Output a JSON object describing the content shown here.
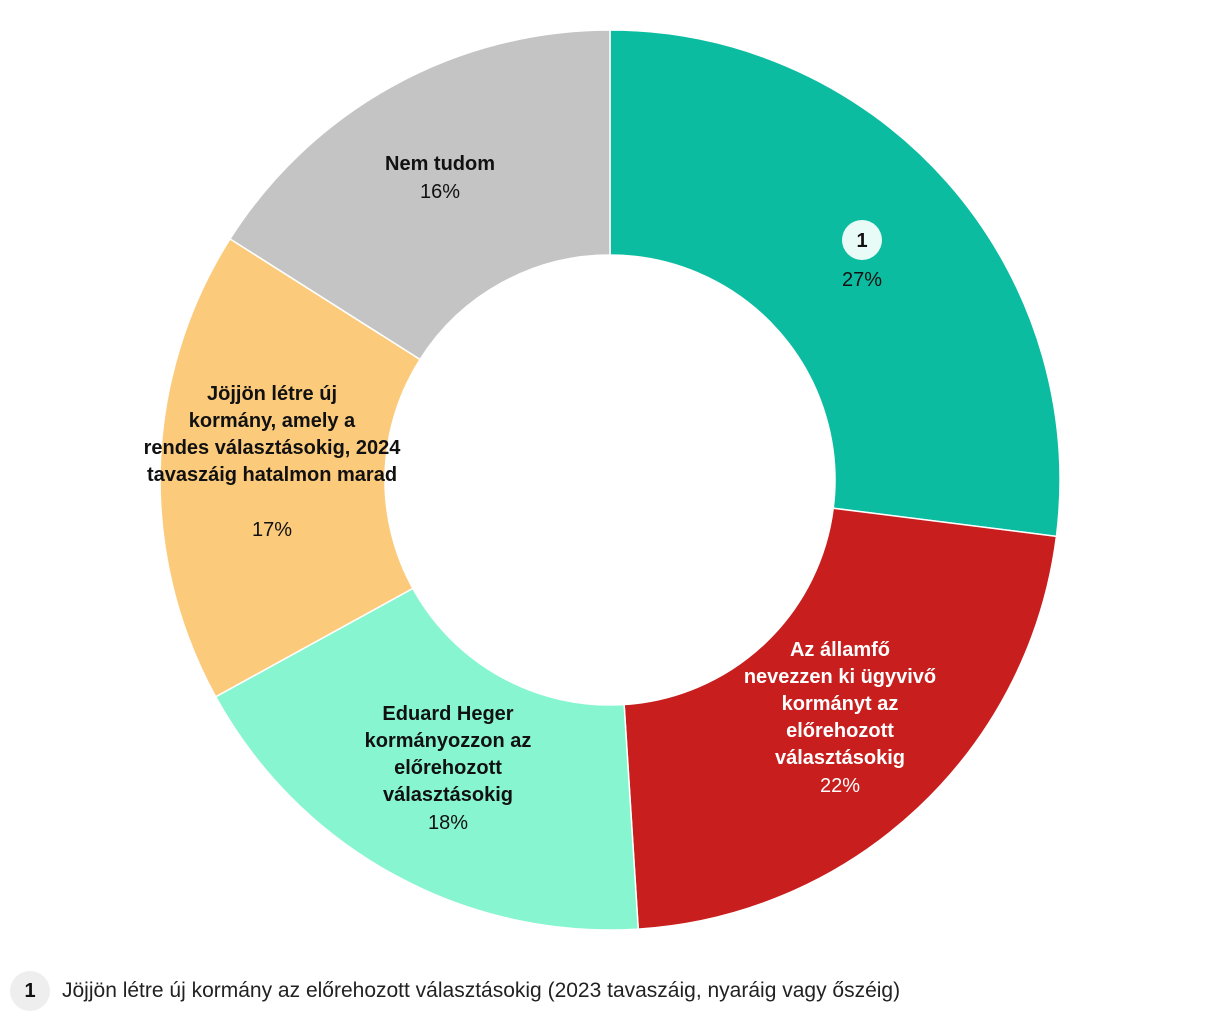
{
  "chart_data": {
    "type": "pie",
    "variant": "donut",
    "slices": [
      {
        "label": "1",
        "is_note_ref": true,
        "value": 27,
        "value_label": "27%",
        "color": "#0bbca0",
        "text_color": "#111111"
      },
      {
        "label": "Az államfő nevezzen ki ügyvivő kormányt az előrehozott választásokig",
        "value": 22,
        "value_label": "22%",
        "color": "#c81e1e",
        "text_color": "#ffffff"
      },
      {
        "label": "Eduard Heger kormányozzon az előrehozott választásokig",
        "value": 18,
        "value_label": "18%",
        "color": "#86f5d0",
        "text_color": "#111111"
      },
      {
        "label": "Jöjjön létre új kormány, amely a rendes választásokig, 2024 tavaszáig hatalmon marad",
        "value": 17,
        "value_label": "17%",
        "color": "#fcca7b",
        "text_color": "#111111"
      },
      {
        "label": "Nem tudom",
        "value": 16,
        "value_label": "16%",
        "color": "#c4c4c4",
        "text_color": "#111111"
      }
    ]
  },
  "footnote": {
    "marker": "1",
    "text": "Jöjjön létre új kormány az előrehozott választásokig (2023 tavaszáig, nyaráig vagy őszéig)"
  }
}
